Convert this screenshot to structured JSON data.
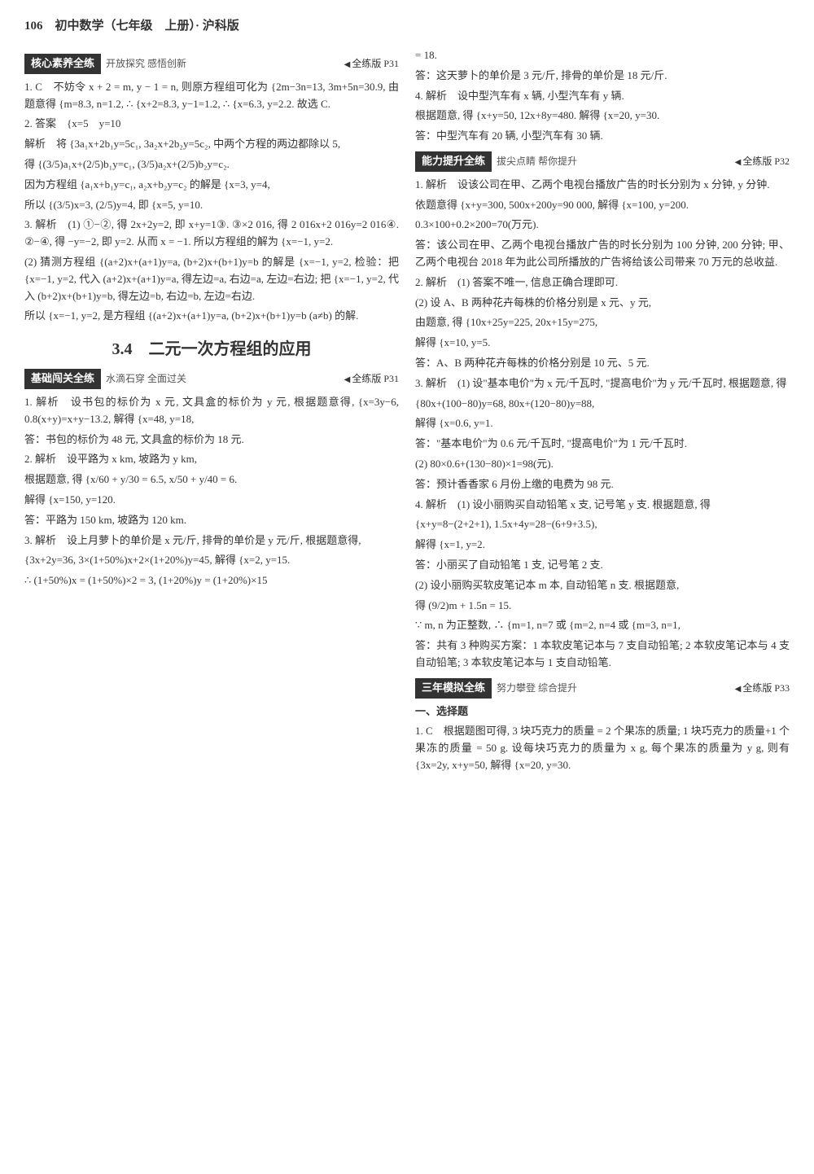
{
  "header": "106　初中数学（七年级　上册）· 沪科版",
  "sections": {
    "hexin": {
      "label": "核心素养全练",
      "subtitle": "开放探究 感悟创新",
      "ref": "全练版 P31"
    },
    "jichu": {
      "label": "基础闯关全练",
      "subtitle": "水滴石穿 全面过关",
      "ref": "全练版 P31"
    },
    "nengli": {
      "label": "能力提升全练",
      "subtitle": "拔尖点睛 帮你提升",
      "ref": "全练版 P32"
    },
    "sannian": {
      "label": "三年模拟全练",
      "subtitle": "努力攀登 综合提升",
      "ref": "全练版 P33"
    }
  },
  "title34": "3.4　二元一次方程组的应用",
  "left": {
    "i1": "1. C　不妨令 x + 2 = m, y − 1 = n, 则原方程组可化为 {2m−3n=13, 3m+5n=30.9, 由题意得 {m=8.3, n=1.2, ∴ {x+2=8.3, y−1=1.2, ∴ {x=6.3, y=2.2. 故选 C.",
    "i2a": "2. 答案　{x=5　y=10",
    "i2b": "解析　将 {3a₁x+2b₁y=5c₁, 3a₂x+2b₂y=5c₂, 中两个方程的两边都除以 5,",
    "i2c": "得 {(3/5)a₁x+(2/5)b₁y=c₁, (3/5)a₂x+(2/5)b₂y=c₂.",
    "i2d": "因为方程组 {a₁x+b₁y=c₁, a₂x+b₂y=c₂ 的解是 {x=3, y=4,",
    "i2e": "所以 {(3/5)x=3, (2/5)y=4, 即 {x=5, y=10.",
    "i3a": "3. 解析　(1) ①−②, 得 2x+2y=2, 即 x+y=1③. ③×2 016, 得 2 016x+2 016y=2 016④. ②−④, 得 −y=−2, 即 y=2. 从而 x = −1. 所以方程组的解为 {x=−1, y=2.",
    "i3b": "(2) 猜测方程组 {(a+2)x+(a+1)y=a, (b+2)x+(b+1)y=b 的解是 {x=−1, y=2, 检验：把 {x=−1, y=2, 代入 (a+2)x+(a+1)y=a, 得左边=a, 右边=a, 左边=右边; 把 {x=−1, y=2, 代入 (b+2)x+(b+1)y=b, 得左边=b, 右边=b, 左边=右边.",
    "i3c": "所以 {x=−1, y=2, 是方程组 {(a+2)x+(a+1)y=a, (b+2)x+(b+1)y=b (a≠b) 的解.",
    "j1a": "1. 解析　设书包的标价为 x 元, 文具盒的标价为 y 元, 根据题意得, {x=3y−6, 0.8(x+y)=x+y−13.2, 解得 {x=48, y=18,",
    "j1b": "答：书包的标价为 48 元, 文具盒的标价为 18 元.",
    "j2a": "2. 解析　设平路为 x km, 坡路为 y km,",
    "j2b": "根据题意, 得 {x/60 + y/30 = 6.5, x/50 + y/40 = 6.",
    "j2c": "解得 {x=150, y=120.",
    "j2d": "答：平路为 150 km, 坡路为 120 km.",
    "j3a": "3. 解析　设上月萝卜的单价是 x 元/斤, 排骨的单价是 y 元/斤, 根据题意得,",
    "j3b": "{3x+2y=36, 3×(1+50%)x+2×(1+20%)y=45, 解得 {x=2, y=15.",
    "j3c": "∴ (1+50%)x = (1+50%)×2 = 3, (1+20%)y = (1+20%)×15"
  },
  "right": {
    "r0a": "= 18.",
    "r0b": "答：这天萝卜的单价是 3 元/斤, 排骨的单价是 18 元/斤.",
    "r4a": "4. 解析　设中型汽车有 x 辆, 小型汽车有 y 辆.",
    "r4b": "根据题意, 得 {x+y=50, 12x+8y=480. 解得 {x=20, y=30.",
    "r4c": "答：中型汽车有 20 辆, 小型汽车有 30 辆.",
    "n1a": "1. 解析　设该公司在甲、乙两个电视台播放广告的时长分别为 x 分钟, y 分钟.",
    "n1b": "依题意得 {x+y=300, 500x+200y=90 000, 解得 {x=100, y=200.",
    "n1c": "0.3×100+0.2×200=70(万元).",
    "n1d": "答：该公司在甲、乙两个电视台播放广告的时长分别为 100 分钟, 200 分钟; 甲、乙两个电视台 2018 年为此公司所播放的广告将给该公司带来 70 万元的总收益.",
    "n2a": "2. 解析　(1) 答案不唯一, 信息正确合理即可.",
    "n2b": "(2) 设 A、B 两种花卉每株的价格分别是 x 元、y 元,",
    "n2c": "由题意, 得 {10x+25y=225, 20x+15y=275,",
    "n2d": "解得 {x=10, y=5.",
    "n2e": "答：A、B 两种花卉每株的价格分别是 10 元、5 元.",
    "n3a": "3. 解析　(1) 设\"基本电价\"为 x 元/千瓦时, \"提高电价\"为 y 元/千瓦时, 根据题意, 得",
    "n3b": "{80x+(100−80)y=68, 80x+(120−80)y=88,",
    "n3c": "解得 {x=0.6, y=1.",
    "n3d": "答：\"基本电价\"为 0.6 元/千瓦时, \"提高电价\"为 1 元/千瓦时.",
    "n3e": "(2) 80×0.6+(130−80)×1=98(元).",
    "n3f": "答：预计香香家 6 月份上缴的电费为 98 元.",
    "n4a": "4. 解析　(1) 设小丽购买自动铅笔 x 支, 记号笔 y 支. 根据题意, 得",
    "n4b": "{x+y=8−(2+2+1), 1.5x+4y=28−(6+9+3.5),",
    "n4c": "解得 {x=1, y=2.",
    "n4d": "答：小丽买了自动铅笔 1 支, 记号笔 2 支.",
    "n4e": "(2) 设小丽购买软皮笔记本 m 本, 自动铅笔 n 支. 根据题意,",
    "n4f": "得 (9/2)m + 1.5n = 15.",
    "n4g": "∵ m, n 为正整数, ∴ {m=1, n=7 或 {m=2, n=4 或 {m=3, n=1,",
    "n4h": "答：共有 3 种购买方案：1 本软皮笔记本与 7 支自动铅笔; 2 本软皮笔记本与 4 支自动铅笔; 3 本软皮笔记本与 1 支自动铅笔.",
    "s_head": "一、选择题",
    "s1a": "1. C　根据题图可得, 3 块巧克力的质量 = 2 个果冻的质量; 1 块巧克力的质量+1 个果冻的质量 = 50 g. 设每块巧克力的质量为 x g, 每个果冻的质量为 y g, 则有 {3x=2y, x+y=50, 解得 {x=20, y=30."
  }
}
